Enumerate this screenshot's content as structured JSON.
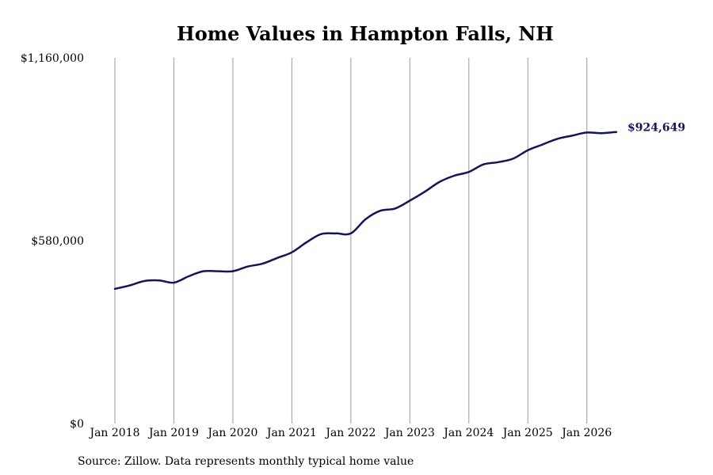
{
  "chart_data": {
    "type": "line",
    "title": "Home Values in Hampton Falls, NH",
    "xlabel": "",
    "ylabel": "",
    "y_ticks": [
      "$0",
      "$580,000",
      "$1,160,000"
    ],
    "ylim": [
      0,
      1160000
    ],
    "x_ticks": [
      "Jan 2018",
      "Jan 2019",
      "Jan 2020",
      "Jan 2021",
      "Jan 2022",
      "Jan 2023",
      "Jan 2024",
      "Jan 2025",
      "Jan 2026"
    ],
    "xlim": [
      "2018-01",
      "2026-07"
    ],
    "grid": "vertical",
    "line_color": "#13135f",
    "end_label": "$924,649",
    "source": "Source: Zillow. Data represents monthly typical home value",
    "series": [
      {
        "x": [
          "2018-01",
          "2018-04",
          "2018-07",
          "2018-10",
          "2019-01",
          "2019-04",
          "2019-07",
          "2019-10",
          "2020-01",
          "2020-04",
          "2020-07",
          "2020-10",
          "2021-01",
          "2021-04",
          "2021-07",
          "2021-10",
          "2022-01",
          "2022-04",
          "2022-07",
          "2022-10",
          "2023-01",
          "2023-04",
          "2023-07",
          "2023-10",
          "2024-01",
          "2024-04",
          "2024-07",
          "2024-10",
          "2025-01",
          "2025-04",
          "2025-07",
          "2025-10",
          "2026-01",
          "2026-04",
          "2026-07"
        ],
        "values": [
          427000,
          438000,
          452000,
          454000,
          447000,
          467000,
          483000,
          483000,
          483000,
          498000,
          507000,
          525000,
          543000,
          575000,
          601000,
          603000,
          603000,
          648000,
          675000,
          682000,
          707000,
          735000,
          766000,
          786000,
          798000,
          822000,
          829000,
          840000,
          867000,
          885000,
          903000,
          913000,
          923000,
          921000,
          924649
        ]
      }
    ]
  }
}
